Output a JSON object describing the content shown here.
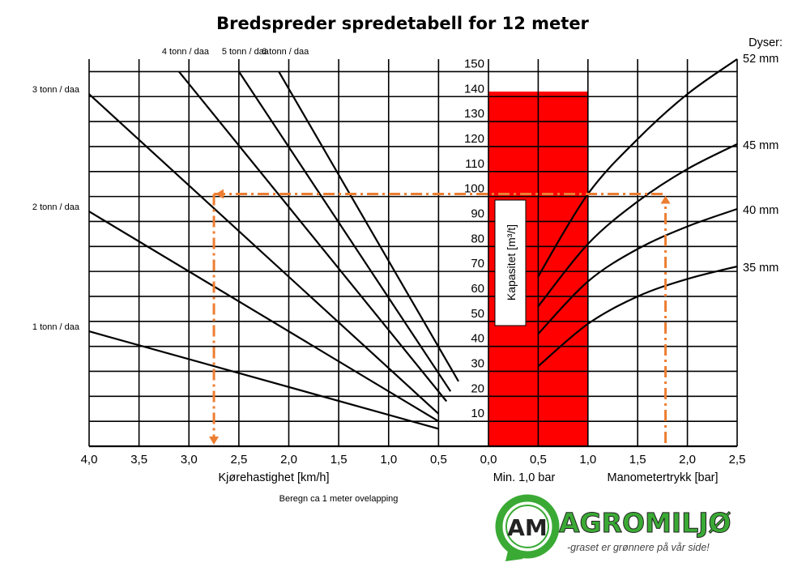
{
  "chart_data": {
    "title": "Bredspreder spredetabell for 12 meter",
    "speed_axis": {
      "label": "Kjørehastighet [km/h]",
      "ticks": [
        "4,0",
        "3,5",
        "3,0",
        "2,5",
        "2,0",
        "1,5",
        "1,0",
        "0,5"
      ],
      "range": [
        4.0,
        0.0
      ]
    },
    "pressure_axis": {
      "label": "Manometertrykk [bar]",
      "ticks": [
        "0,0",
        "0,5",
        "1,0",
        "1,5",
        "2,0",
        "2,5"
      ],
      "range": [
        0.0,
        2.5
      ]
    },
    "capacity_axis": {
      "label": "Kapasitet [m³/t]",
      "ticks": [
        "10",
        "20",
        "30",
        "40",
        "50",
        "60",
        "70",
        "80",
        "90",
        "100",
        "110",
        "120",
        "130",
        "140",
        "150"
      ],
      "range": [
        0,
        155
      ]
    },
    "grid": true,
    "rate_lines": {
      "type": "line",
      "left_labels": [
        "3 tonn / daa",
        "2 tonn / daa",
        "1 tonn / daa"
      ],
      "top_labels": [
        "4 tonn / daa",
        "5 tonn / daa",
        "6 tonn / daa"
      ],
      "series": [
        {
          "name": "1 tonn / daa",
          "points": [
            [
              4.0,
              46
            ],
            [
              0.5,
              7
            ]
          ]
        },
        {
          "name": "2 tonn / daa",
          "points": [
            [
              4.0,
              94
            ],
            [
              0.5,
              10
            ]
          ]
        },
        {
          "name": "3 tonn / daa",
          "points": [
            [
              4.0,
              141
            ],
            [
              0.5,
              13
            ]
          ]
        },
        {
          "name": "4 tonn / daa",
          "points": [
            [
              3.1,
              150
            ],
            [
              0.42,
              18
            ]
          ]
        },
        {
          "name": "5 tonn / daa",
          "points": [
            [
              2.5,
              150
            ],
            [
              0.38,
              22
            ]
          ]
        },
        {
          "name": "6 tonn / daa",
          "points": [
            [
              2.1,
              150
            ],
            [
              0.3,
              26
            ]
          ]
        }
      ]
    },
    "nozzle_curves": {
      "type": "line",
      "heading": "Dyser:",
      "series": [
        {
          "name": "52 mm",
          "points": [
            [
              0.5,
              68
            ],
            [
              1.0,
              101
            ],
            [
              1.5,
              123
            ],
            [
              2.0,
              141
            ],
            [
              2.5,
              155
            ]
          ]
        },
        {
          "name": "45 mm",
          "points": [
            [
              0.5,
              56
            ],
            [
              1.0,
              81
            ],
            [
              1.5,
              98
            ],
            [
              2.0,
              111
            ],
            [
              2.5,
              121
            ]
          ]
        },
        {
          "name": "40 mm",
          "points": [
            [
              0.5,
              45
            ],
            [
              1.0,
              66
            ],
            [
              1.5,
              79
            ],
            [
              2.0,
              88
            ],
            [
              2.5,
              95
            ]
          ]
        },
        {
          "name": "35 mm",
          "points": [
            [
              0.5,
              32
            ],
            [
              1.0,
              49
            ],
            [
              1.5,
              60
            ],
            [
              2.0,
              67
            ],
            [
              2.5,
              72
            ]
          ]
        }
      ]
    },
    "min_pressure_band": {
      "from": 0.0,
      "to": 1.0,
      "top": 142,
      "color": "#ff0000",
      "label": "Min. 1,0 bar"
    },
    "example_path": {
      "color": "#ed7d31",
      "speed": 2.75,
      "capacity": 101,
      "pressure": 1.78
    },
    "footnote": "Beregn ca 1 meter ovelapping"
  },
  "logo": {
    "monogram": "AM",
    "name": "AGROMILJØ",
    "tagline": "-graset er grønnere på vår side!",
    "color": "#3aaa35"
  }
}
